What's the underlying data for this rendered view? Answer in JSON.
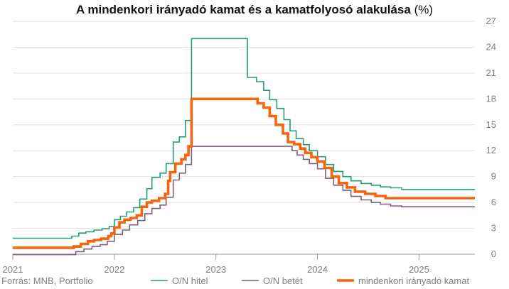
{
  "chart_data": {
    "type": "line",
    "title": "A mindenkori irányadó kamat és a kamatfolyosó alakulása",
    "title_unit": "(%)",
    "source": "Forrás: MNB, Portfolio",
    "xlim": [
      2021.0,
      2025.55
    ],
    "ylim": [
      0,
      27
    ],
    "x_ticks": [
      {
        "value": 2021,
        "label": "2021"
      },
      {
        "value": 2022,
        "label": "2022"
      },
      {
        "value": 2023,
        "label": "2023"
      },
      {
        "value": 2024,
        "label": "2024"
      },
      {
        "value": 2025,
        "label": "2025"
      }
    ],
    "y_ticks": [
      {
        "value": 0,
        "label": "0"
      },
      {
        "value": 3,
        "label": "3"
      },
      {
        "value": 6,
        "label": "6"
      },
      {
        "value": 9,
        "label": "9"
      },
      {
        "value": 12,
        "label": "12"
      },
      {
        "value": 15,
        "label": "15"
      },
      {
        "value": 18,
        "label": "18"
      },
      {
        "value": 21,
        "label": "21"
      },
      {
        "value": 24,
        "label": "24"
      },
      {
        "value": 27,
        "label": "27"
      }
    ],
    "grid": true,
    "legend_position": "bottom",
    "series": [
      {
        "name": "O/N hitel",
        "color": "#1f9e7a",
        "width": 1.6,
        "step": true,
        "points": [
          [
            2021.0,
            1.85
          ],
          [
            2021.55,
            1.85
          ],
          [
            2021.58,
            2.1
          ],
          [
            2021.65,
            2.45
          ],
          [
            2021.72,
            2.6
          ],
          [
            2021.8,
            2.8
          ],
          [
            2021.88,
            2.95
          ],
          [
            2021.95,
            3.2
          ],
          [
            2022.0,
            4.0
          ],
          [
            2022.06,
            4.4
          ],
          [
            2022.12,
            4.9
          ],
          [
            2022.19,
            5.4
          ],
          [
            2022.25,
            6.4
          ],
          [
            2022.32,
            7.6
          ],
          [
            2022.37,
            8.9
          ],
          [
            2022.45,
            9.4
          ],
          [
            2022.51,
            10.5
          ],
          [
            2022.58,
            13.0
          ],
          [
            2022.64,
            13.6
          ],
          [
            2022.7,
            15.5
          ],
          [
            2022.76,
            25.0
          ],
          [
            2023.3,
            25.0
          ],
          [
            2023.31,
            20.5
          ],
          [
            2023.4,
            20.0
          ],
          [
            2023.47,
            19.0
          ],
          [
            2023.53,
            17.9
          ],
          [
            2023.6,
            16.9
          ],
          [
            2023.67,
            15.6
          ],
          [
            2023.73,
            14.3
          ],
          [
            2023.79,
            13.4
          ],
          [
            2023.86,
            12.7
          ],
          [
            2023.92,
            12.0
          ],
          [
            2024.0,
            11.3
          ],
          [
            2024.08,
            10.4
          ],
          [
            2024.16,
            9.6
          ],
          [
            2024.25,
            9.0
          ],
          [
            2024.33,
            8.5
          ],
          [
            2024.43,
            8.2
          ],
          [
            2024.53,
            8.0
          ],
          [
            2024.62,
            7.8
          ],
          [
            2024.72,
            7.7
          ],
          [
            2024.83,
            7.5
          ],
          [
            2025.55,
            7.5
          ]
        ]
      },
      {
        "name": "O/N betét",
        "color": "#7e5f82",
        "width": 1.6,
        "step": true,
        "points": [
          [
            2021.0,
            -0.05
          ],
          [
            2021.55,
            -0.05
          ],
          [
            2021.62,
            0.3
          ],
          [
            2021.7,
            0.6
          ],
          [
            2021.78,
            0.9
          ],
          [
            2021.86,
            1.1
          ],
          [
            2021.93,
            1.5
          ],
          [
            2022.0,
            2.3
          ],
          [
            2022.08,
            2.8
          ],
          [
            2022.15,
            3.4
          ],
          [
            2022.23,
            3.9
          ],
          [
            2022.3,
            4.7
          ],
          [
            2022.37,
            5.3
          ],
          [
            2022.45,
            5.7
          ],
          [
            2022.51,
            6.6
          ],
          [
            2022.58,
            8.6
          ],
          [
            2022.64,
            9.4
          ],
          [
            2022.7,
            10.4
          ],
          [
            2022.76,
            12.5
          ],
          [
            2023.7,
            12.5
          ],
          [
            2023.75,
            12.0
          ],
          [
            2023.8,
            11.5
          ],
          [
            2023.86,
            11.0
          ],
          [
            2023.92,
            10.5
          ],
          [
            2024.0,
            9.9
          ],
          [
            2024.08,
            8.8
          ],
          [
            2024.16,
            8.0
          ],
          [
            2024.25,
            7.4
          ],
          [
            2024.33,
            6.7
          ],
          [
            2024.43,
            6.3
          ],
          [
            2024.53,
            6.0
          ],
          [
            2024.62,
            5.8
          ],
          [
            2024.72,
            5.6
          ],
          [
            2024.83,
            5.5
          ],
          [
            2025.55,
            5.5
          ]
        ]
      },
      {
        "name": "mindenkori irányadó kamat",
        "color": "#f5650f",
        "width": 3.6,
        "step": true,
        "points": [
          [
            2021.0,
            0.75
          ],
          [
            2021.55,
            0.75
          ],
          [
            2021.6,
            0.9
          ],
          [
            2021.67,
            1.2
          ],
          [
            2021.74,
            1.5
          ],
          [
            2021.8,
            1.65
          ],
          [
            2021.87,
            1.8
          ],
          [
            2021.94,
            2.1
          ],
          [
            2021.97,
            2.4
          ],
          [
            2022.0,
            3.1
          ],
          [
            2022.05,
            3.7
          ],
          [
            2022.1,
            4.0
          ],
          [
            2022.16,
            4.2
          ],
          [
            2022.22,
            4.5
          ],
          [
            2022.27,
            5.5
          ],
          [
            2022.32,
            6.0
          ],
          [
            2022.37,
            6.2
          ],
          [
            2022.44,
            6.5
          ],
          [
            2022.5,
            7.0
          ],
          [
            2022.53,
            8.5
          ],
          [
            2022.55,
            9.5
          ],
          [
            2022.6,
            10.5
          ],
          [
            2022.66,
            11.0
          ],
          [
            2022.7,
            11.5
          ],
          [
            2022.73,
            12.5
          ],
          [
            2022.76,
            18.0
          ],
          [
            2023.36,
            18.0
          ],
          [
            2023.41,
            17.5
          ],
          [
            2023.47,
            17.0
          ],
          [
            2023.53,
            16.0
          ],
          [
            2023.59,
            15.0
          ],
          [
            2023.66,
            14.0
          ],
          [
            2023.71,
            13.0
          ],
          [
            2023.77,
            12.75
          ],
          [
            2023.83,
            12.25
          ],
          [
            2023.88,
            11.75
          ],
          [
            2023.94,
            11.25
          ],
          [
            2024.0,
            10.75
          ],
          [
            2024.07,
            10.0
          ],
          [
            2024.14,
            9.0
          ],
          [
            2024.21,
            8.25
          ],
          [
            2024.29,
            7.75
          ],
          [
            2024.37,
            7.25
          ],
          [
            2024.47,
            7.0
          ],
          [
            2024.57,
            6.75
          ],
          [
            2024.67,
            6.5
          ],
          [
            2025.55,
            6.5
          ]
        ]
      }
    ]
  }
}
